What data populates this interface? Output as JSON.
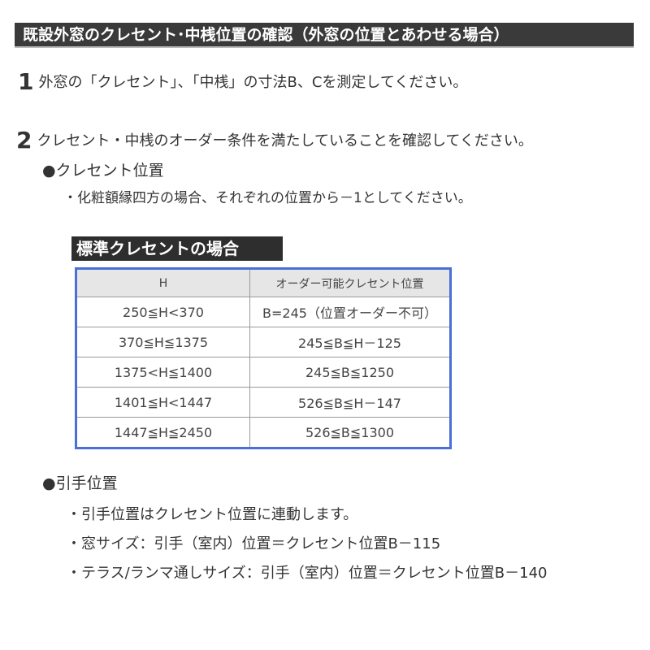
{
  "title": "既設外窓のクレセント･中桟位置の確認（外窓の位置とあわせる場合）",
  "step1": {
    "number": "1",
    "text": "外窓の「クレセント」、「中桟」の寸法B、Cを測定してください。"
  },
  "step2": {
    "number": "2",
    "text": "クレセント・中桟のオーダー条件を満たしていることを確認してください。"
  },
  "crescent": {
    "heading": "●クレセント位置",
    "note": "・化粧額縁四方の場合、それぞれの位置から－1としてください。"
  },
  "table": {
    "label": "標準クレセントの場合",
    "headers": [
      "H",
      "オーダー可能クレセント位置"
    ],
    "rows": [
      [
        "250≦H<370",
        "B=245（位置オーダー不可）"
      ],
      [
        "370≦H≦1375",
        "245≦B≦H－125"
      ],
      [
        "1375<H≦1400",
        "245≦B≦1250"
      ],
      [
        "1401≦H<1447",
        "526≦B≦H－147"
      ],
      [
        "1447≦H≦2450",
        "526≦B≦1300"
      ]
    ],
    "border_color": "#4a6fd6"
  },
  "handle": {
    "heading": "●引手位置",
    "notes": [
      "・引手位置はクレセント位置に連動します。",
      "・窓サイズ：引手（室内）位置＝クレセント位置B－115",
      "・テラス/ランマ通しサイズ：引手（室内）位置＝クレセント位置B－140"
    ]
  }
}
